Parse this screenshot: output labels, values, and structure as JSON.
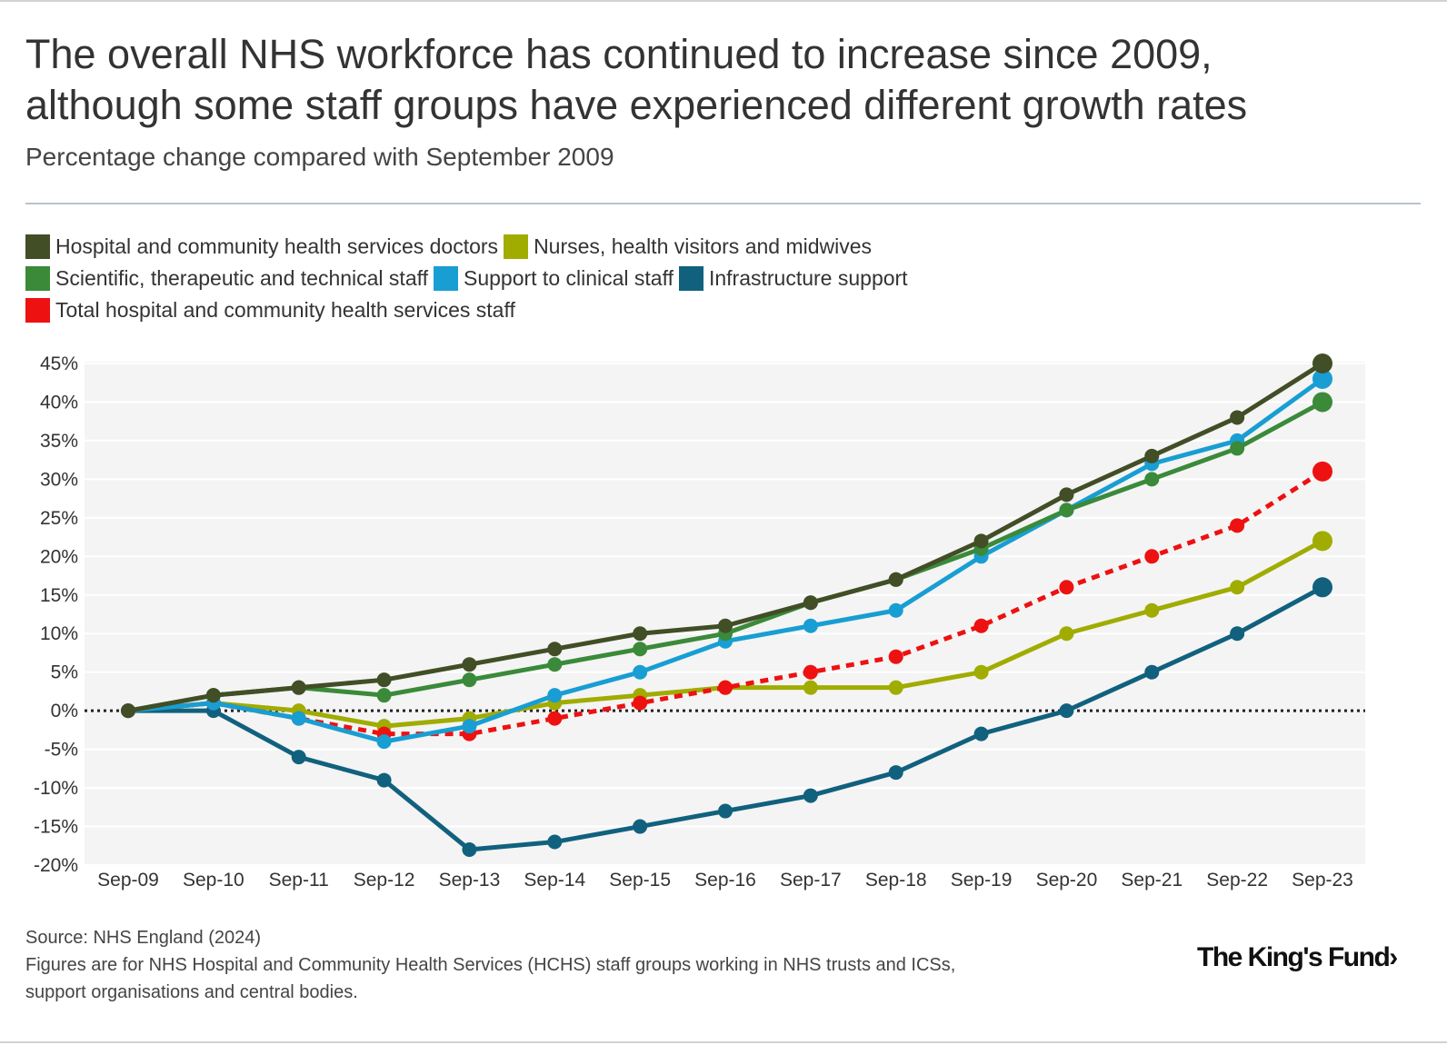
{
  "header": {
    "title_line1": "The overall NHS workforce has continued to increase since 2009,",
    "title_line2": "although some staff groups have experienced different growth rates",
    "subtitle": "Percentage change compared with September 2009"
  },
  "footer": {
    "source": "Source: NHS England (2024)",
    "note_line1": "Figures are for NHS Hospital and Community Health Services (HCHS) staff groups working in NHS trusts and ICSs,",
    "note_line2": "support organisations and central bodies."
  },
  "logo": {
    "text": "The King's Fund",
    "chevron": "›"
  },
  "chart_data": {
    "type": "line",
    "title": "The overall NHS workforce has continued to increase since 2009, although some staff groups have experienced different growth rates",
    "subtitle": "Percentage change compared with September 2009",
    "xlabel": "",
    "ylabel": "",
    "ylim": [
      -20,
      45
    ],
    "yticks": [
      45,
      40,
      35,
      30,
      25,
      20,
      15,
      10,
      5,
      0,
      -5,
      -10,
      -15,
      -20
    ],
    "ytick_labels": [
      "45%",
      "40%",
      "35%",
      "30%",
      "25%",
      "20%",
      "15%",
      "10%",
      "5%",
      "0%",
      "-5%",
      "-10%",
      "-15%",
      "-20%"
    ],
    "categories": [
      "Sep-09",
      "Sep-10",
      "Sep-11",
      "Sep-12",
      "Sep-13",
      "Sep-14",
      "Sep-15",
      "Sep-16",
      "Sep-17",
      "Sep-18",
      "Sep-19",
      "Sep-20",
      "Sep-21",
      "Sep-22",
      "Sep-23"
    ],
    "legend_position": "top-left",
    "series": [
      {
        "name": "Nurses, health visitors and midwives",
        "color": "#a0ac00",
        "dashed": false,
        "values": [
          0,
          1,
          0,
          -2,
          -1,
          1,
          2,
          3,
          3,
          3,
          5,
          10,
          13,
          16,
          22
        ]
      },
      {
        "name": "Infrastructure support",
        "color": "#11617e",
        "dashed": false,
        "values": [
          0,
          0,
          -6,
          -9,
          -18,
          -17,
          -15,
          -13,
          -11,
          -8,
          -3,
          0,
          5,
          10,
          16
        ]
      },
      {
        "name": "Total hospital and community health services staff",
        "color": "#ee1111",
        "dashed": true,
        "values": [
          0,
          1,
          -1,
          -3,
          -3,
          -1,
          1,
          3,
          5,
          7,
          11,
          16,
          20,
          24,
          31
        ]
      },
      {
        "name": "Support to clinical staff",
        "color": "#189ed3",
        "dashed": false,
        "values": [
          0,
          1,
          -1,
          -4,
          -2,
          2,
          5,
          9,
          11,
          13,
          20,
          26,
          32,
          35,
          43
        ]
      },
      {
        "name": "Scientific, therapeutic and technical staff",
        "color": "#3a8a3a",
        "dashed": false,
        "values": [
          0,
          2,
          3,
          2,
          4,
          6,
          8,
          10,
          14,
          17,
          21,
          26,
          30,
          34,
          40
        ]
      },
      {
        "name": "Hospital and community health services doctors",
        "color": "#414e26",
        "dashed": false,
        "values": [
          0,
          2,
          3,
          4,
          6,
          8,
          10,
          11,
          14,
          17,
          22,
          28,
          33,
          38,
          45
        ]
      }
    ],
    "legend": [
      {
        "name": "Hospital and community health services doctors",
        "color": "#414e26"
      },
      {
        "name": "Nurses, health visitors and midwives",
        "color": "#a0ac00"
      },
      {
        "name": "Scientific, therapeutic and technical staff",
        "color": "#3a8a3a"
      },
      {
        "name": "Support to clinical staff",
        "color": "#189ed3"
      },
      {
        "name": "Infrastructure support",
        "color": "#11617e"
      },
      {
        "name": "Total hospital and community health services staff",
        "color": "#ee1111"
      }
    ],
    "colors": {
      "plot_background": "#f4f4f4",
      "gridline": "#ffffff",
      "zero_line": "#222222"
    }
  }
}
